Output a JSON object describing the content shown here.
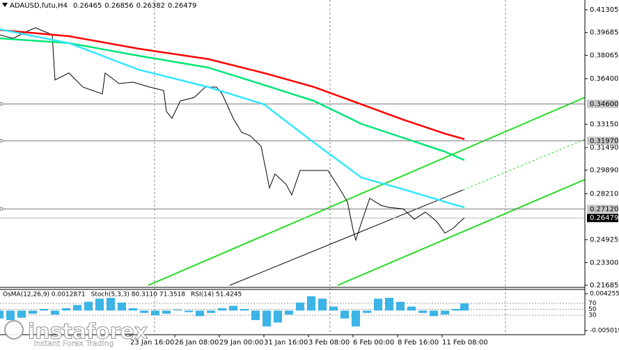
{
  "chart_data": [
    {
      "type": "line",
      "title": "ADAUSD,futu,H4",
      "ohlc": [
        "0.26465",
        "0.26856",
        "0.26382",
        "0.26479"
      ],
      "xlim": [
        -46.75,
        163.25
      ],
      "xticks": [
        {
          "value": 0,
          "label": "23 Jan 16:00"
        },
        {
          "value": 16,
          "label": "26 Jan 08:00"
        },
        {
          "value": 32,
          "label": "29 Jan 00:00"
        },
        {
          "value": 48,
          "label": "31 Jan 16:00"
        },
        {
          "value": 64,
          "label": "3 Feb 08:00"
        },
        {
          "value": 80,
          "label": "6 Feb 00:00"
        },
        {
          "value": 96,
          "label": "8 Feb 16:00"
        },
        {
          "value": 112,
          "label": "11 Feb 08:00"
        }
      ],
      "ylim": [
        0.21685,
        0.41305
      ],
      "yticks": [
        0.41305,
        0.39685,
        0.38065,
        {
          "value": 0.364,
          "label": "0.36400"
        },
        {
          "value": 0.3315,
          "label": "0.33150"
        },
        {
          "value": 0.3149,
          "label": "0.31490"
        },
        {
          "value": 0.2989,
          "label": "0.29890"
        },
        {
          "value": 0.2821,
          "label": "0.28210"
        },
        0.24925,
        {
          "value": 0.233,
          "label": "0.23300"
        },
        0.21685
      ],
      "levels": [
        {
          "value": 0.346,
          "label": "0.34600"
        },
        {
          "value": 0.3197,
          "label": "0.31970"
        },
        {
          "value": 0.2712,
          "label": "0.27120"
        }
      ],
      "last_price": 0.26479,
      "series": [
        {
          "color": "#000000",
          "x": [
            -47,
            -42,
            -37,
            -34,
            -28,
            -27,
            -22,
            -17,
            -10,
            -9,
            -4,
            1,
            7,
            12,
            13,
            15,
            18,
            23,
            27,
            31,
            33,
            37,
            40,
            43,
            47,
            50,
            52,
            56,
            58,
            61,
            66,
            71,
            75,
            78,
            80,
            81,
            83,
            86,
            90,
            93,
            98,
            102,
            106,
            110,
            113,
            116,
            118,
            120
          ],
          "values": [
            0.3952,
            0.3927,
            0.3977,
            0.4002,
            0.3952,
            0.363,
            0.368,
            0.358,
            0.3531,
            0.368,
            0.3605,
            0.3615,
            0.358,
            0.3556,
            0.3407,
            0.3357,
            0.3481,
            0.3506,
            0.358,
            0.358,
            0.3531,
            0.3357,
            0.3258,
            0.3234,
            0.3159,
            0.2862,
            0.2961,
            0.2887,
            0.2812,
            0.2986,
            0.2986,
            0.2986,
            0.2862,
            0.2763,
            0.2565,
            0.249,
            0.2614,
            0.2788,
            0.2738,
            0.2723,
            0.2713,
            0.2639,
            0.2689,
            0.2624,
            0.254,
            0.2575,
            0.2614,
            0.26479
          ]
        },
        {
          "color": "#ff0000",
          "x": [
            -47,
            -22,
            3,
            28,
            48,
            66,
            83,
            98,
            113,
            120
          ],
          "values": [
            0.3987,
            0.3942,
            0.3853,
            0.3779,
            0.368,
            0.358,
            0.3457,
            0.3348,
            0.3248,
            0.3209
          ]
        },
        {
          "color": "#00e676",
          "x": [
            -47,
            -22,
            3,
            28,
            48,
            66,
            83,
            98,
            113,
            120
          ],
          "values": [
            0.3927,
            0.3893,
            0.3803,
            0.3719,
            0.3595,
            0.3481,
            0.3318,
            0.3219,
            0.312,
            0.306
          ]
        },
        {
          "color": "#33e6ff",
          "x": [
            -47,
            -22,
            3,
            28,
            48,
            66,
            83,
            98,
            113,
            120
          ],
          "values": [
            0.3992,
            0.3893,
            0.3704,
            0.358,
            0.3457,
            0.3184,
            0.2936,
            0.2852,
            0.2763,
            0.2723
          ]
        }
      ]
    },
    {
      "type": "bar",
      "labels": [
        "OsMA(12,26,9) 0.0012871",
        "Stoch(5,3,3) 80.3110 71.3518",
        "RSI(14) 51.4245"
      ],
      "color": "#3cb4e6",
      "xlim": [
        -46.75,
        163.25
      ],
      "x": [
        -47,
        -43,
        -39,
        -35,
        -31,
        -27,
        -23,
        -19,
        -15,
        -11,
        -7,
        -3,
        1,
        5,
        9,
        13,
        17,
        21,
        25,
        29,
        33,
        37,
        41,
        45,
        49,
        53,
        57,
        61,
        65,
        69,
        73,
        77,
        81,
        85,
        89,
        93,
        97,
        101,
        105,
        109,
        113,
        117,
        120
      ],
      "values": [
        -0.002,
        -0.0024,
        -0.0018,
        -0.0008,
        0.0004,
        -0.001,
        0.0006,
        0.0014,
        0.0022,
        0.003,
        0.0032,
        0.002,
        0.0006,
        -0.0006,
        -0.0012,
        -0.0008,
        0.0002,
        -0.0004,
        -0.0014,
        -0.0006,
        0.0006,
        0.0012,
        0.0004,
        -0.0024,
        -0.004,
        -0.003,
        -0.001,
        0.002,
        0.0036,
        0.003,
        0.001,
        -0.002,
        -0.004,
        -0.0006,
        0.003,
        0.0032,
        0.0022,
        0.001,
        -0.0006,
        -0.0014,
        -0.001,
        0.0004,
        0.0018
      ],
      "ylim": [
        -0.005019,
        0.004255
      ],
      "yticks": [
        0.004255,
        -0.005019
      ],
      "y2lim": [
        -22,
        103
      ],
      "y2ticks": [
        70,
        50,
        30
      ]
    }
  ]
}
